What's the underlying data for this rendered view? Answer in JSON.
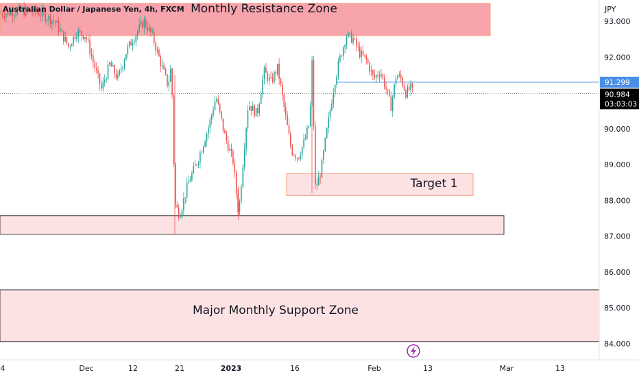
{
  "chart_data": {
    "type": "candlestick",
    "title": "Australian Dollar / Japanese Yen, 4h, FXCM",
    "currency": "JPY",
    "ylim": [
      83.8,
      93.4
    ],
    "y_ticks": [
      "93.000",
      "92.000",
      "91.000",
      "90.000",
      "89.000",
      "88.000",
      "87.000",
      "86.000",
      "85.000",
      "84.000"
    ],
    "x_ticks": [
      {
        "label": "4",
        "bold": false
      },
      {
        "label": "Dec",
        "bold": false
      },
      {
        "label": "12",
        "bold": false
      },
      {
        "label": "21",
        "bold": false
      },
      {
        "label": "2023",
        "bold": true
      },
      {
        "label": "16",
        "bold": false
      },
      {
        "label": "Feb",
        "bold": false
      },
      {
        "label": "13",
        "bold": false
      },
      {
        "label": "Mar",
        "bold": false
      },
      {
        "label": "13",
        "bold": false
      }
    ],
    "zones": [
      {
        "label": "Monthly Resistance Zone",
        "low": 92.6,
        "high": 93.5,
        "fill": "#f7a4ac",
        "border": "#f5a07a"
      },
      {
        "label": "Target 1",
        "low": 88.13,
        "high": 88.75,
        "fill": "#fde2e4",
        "border": "#f5a07a"
      },
      {
        "label": "",
        "low": 87.05,
        "high": 87.57,
        "fill": "#fde2e4",
        "border": "#3c3c3c"
      },
      {
        "label": "Major Monthly Support Zone",
        "low": 84.05,
        "high": 85.5,
        "fill": "#fde2e4",
        "border": "#3c3c3c"
      }
    ],
    "level_line": {
      "value": 91.299,
      "label": "91.299",
      "color": "#4a8fe7"
    },
    "last_price": {
      "value": 90.984,
      "label": "90.984",
      "countdown": "03:03:03",
      "color": "#000000"
    },
    "up_color": "#26a69a",
    "down_color": "#ef5350",
    "path": [
      [
        0,
        93.2
      ],
      [
        28,
        93.3
      ],
      [
        55,
        93.25
      ],
      [
        80,
        93.0
      ],
      [
        100,
        92.3
      ],
      [
        112,
        92.7
      ],
      [
        125,
        92.6
      ],
      [
        140,
        91.6
      ],
      [
        148,
        91.1
      ],
      [
        160,
        91.8
      ],
      [
        172,
        91.4
      ],
      [
        185,
        92.2
      ],
      [
        200,
        92.7
      ],
      [
        210,
        93.0
      ],
      [
        222,
        92.6
      ],
      [
        235,
        91.8
      ],
      [
        245,
        91.2
      ],
      [
        250,
        91.8
      ],
      [
        255,
        87.9
      ],
      [
        262,
        87.6
      ],
      [
        275,
        88.5
      ],
      [
        290,
        89.2
      ],
      [
        305,
        90.1
      ],
      [
        315,
        90.9
      ],
      [
        328,
        89.8
      ],
      [
        340,
        89.1
      ],
      [
        348,
        87.6
      ],
      [
        355,
        89.2
      ],
      [
        362,
        90.7
      ],
      [
        375,
        90.4
      ],
      [
        385,
        91.6
      ],
      [
        395,
        91.3
      ],
      [
        405,
        91.7
      ],
      [
        415,
        90.5
      ],
      [
        425,
        89.4
      ],
      [
        435,
        89.2
      ],
      [
        445,
        89.7
      ],
      [
        452,
        90.2
      ],
      [
        455,
        91.9
      ],
      [
        460,
        88.3
      ],
      [
        468,
        88.8
      ],
      [
        478,
        90.1
      ],
      [
        488,
        91.3
      ],
      [
        495,
        91.9
      ],
      [
        505,
        92.6
      ],
      [
        515,
        92.5
      ],
      [
        525,
        92.1
      ],
      [
        535,
        91.9
      ],
      [
        545,
        91.4
      ],
      [
        555,
        91.6
      ],
      [
        565,
        91.0
      ],
      [
        570,
        90.6
      ],
      [
        578,
        91.5
      ],
      [
        585,
        91.4
      ],
      [
        592,
        91.0
      ],
      [
        600,
        91.15
      ],
      [
        602,
        90.98
      ]
    ]
  },
  "flash_icon": "lightning-icon"
}
